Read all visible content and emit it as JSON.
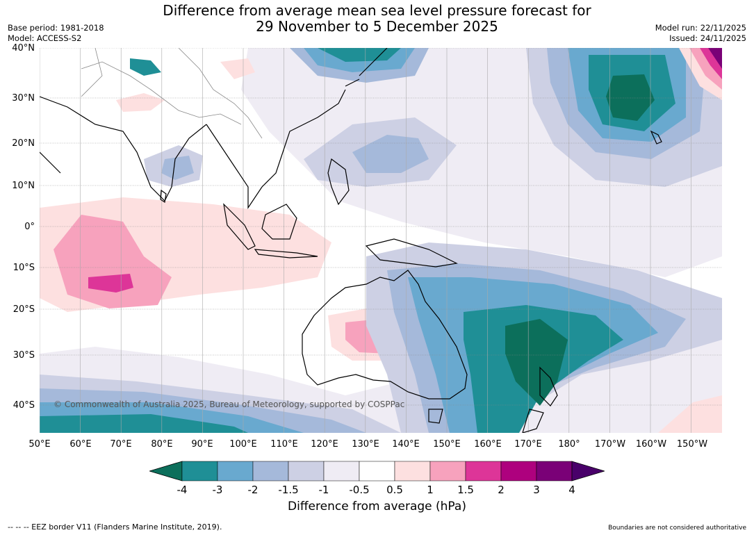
{
  "title_line1": "Difference from average mean sea level pressure forecast for",
  "title_line2": "29 November to 5 December 2025",
  "meta_left": [
    "Base period: 1981-2018",
    "Model: ACCESS-S2"
  ],
  "meta_right": [
    "Model run: 22/11/2025",
    "Issued: 24/11/2025"
  ],
  "lat_labels": [
    "40°N",
    "30°N",
    "20°N",
    "10°N",
    "0°",
    "10°S",
    "20°S",
    "30°S",
    "40°S"
  ],
  "lon_labels": [
    "50°E",
    "60°E",
    "70°E",
    "80°E",
    "90°E",
    "100°E",
    "110°E",
    "120°E",
    "130°E",
    "140°E",
    "150°E",
    "160°E",
    "170°E",
    "180°",
    "170°W",
    "160°W",
    "150°W"
  ],
  "colorbar": {
    "ticks": [
      "-4",
      "-3",
      "-2",
      "-1.5",
      "-1",
      "-0.5",
      "0.5",
      "1",
      "1.5",
      "2",
      "3",
      "4"
    ],
    "colors": [
      "#0c6f5b",
      "#1f8f96",
      "#69a9cf",
      "#a5b9da",
      "#cdd0e4",
      "#efecf4",
      "#ffffff",
      "#fde0e0",
      "#f7a2bd",
      "#dd3598",
      "#ae017e",
      "#7a0177",
      "#49006a"
    ],
    "label": "Difference from average (hPa)"
  },
  "copyright": "© Commonwealth of Australia 2025, Bureau of Meteorology, supported by COSPPac",
  "footer_left": "--  --  -- EEZ border V11 (Flanders Marine Institute, 2019).",
  "footer_right": "Boundaries are not considered authoritative"
}
